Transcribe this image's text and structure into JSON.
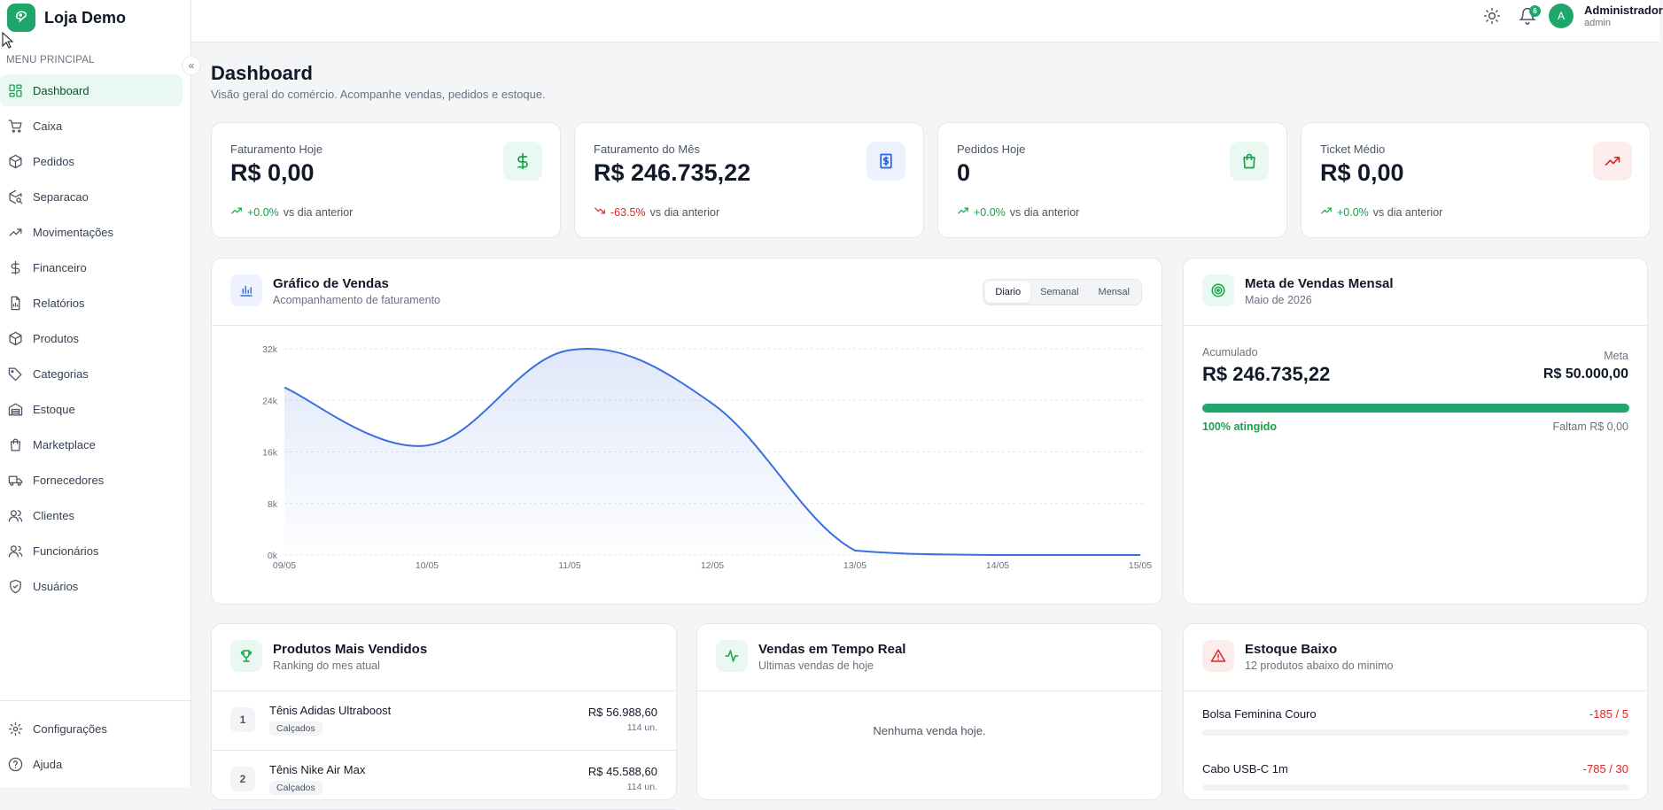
{
  "brand": {
    "name": "Loja Demo"
  },
  "sidebar": {
    "menu_title": "MENU PRINCIPAL",
    "items": [
      {
        "label": "Dashboard",
        "icon": "dashboard-icon"
      },
      {
        "label": "Caixa",
        "icon": "cart-icon"
      },
      {
        "label": "Pedidos",
        "icon": "package-icon"
      },
      {
        "label": "Separacao",
        "icon": "package-search-icon"
      },
      {
        "label": "Movimentações",
        "icon": "trending-icon"
      },
      {
        "label": "Financeiro",
        "icon": "dollar-icon"
      },
      {
        "label": "Relatórios",
        "icon": "report-icon"
      },
      {
        "label": "Produtos",
        "icon": "box-icon"
      },
      {
        "label": "Categorias",
        "icon": "tag-icon"
      },
      {
        "label": "Estoque",
        "icon": "warehouse-icon"
      },
      {
        "label": "Marketplace",
        "icon": "shopping-bag-icon"
      },
      {
        "label": "Fornecedores",
        "icon": "truck-icon"
      },
      {
        "label": "Clientes",
        "icon": "users-icon"
      },
      {
        "label": "Funcionários",
        "icon": "user-group-icon"
      },
      {
        "label": "Usuários",
        "icon": "shield-icon"
      }
    ],
    "bottom": [
      {
        "label": "Configurações",
        "icon": "gear-icon"
      },
      {
        "label": "Ajuda",
        "icon": "help-icon"
      }
    ]
  },
  "topbar": {
    "notifications_count": "6",
    "avatar_initial": "A",
    "user_name": "Administrador",
    "user_role": "admin"
  },
  "page": {
    "title": "Dashboard",
    "subtitle": "Visão geral do comércio. Acompanhe vendas, pedidos e estoque."
  },
  "kpis": [
    {
      "label": "Faturamento Hoje",
      "value": "R$ 0,00",
      "delta": "+0.0%",
      "vs": "vs dia anterior",
      "trend": "up",
      "icon": "dollar-icon",
      "color": "#16a34a"
    },
    {
      "label": "Faturamento do Mês",
      "value": "R$ 246.735,22",
      "delta": "-63.5%",
      "vs": "vs dia anterior",
      "trend": "down",
      "icon": "receipt-icon",
      "color": "#2563eb"
    },
    {
      "label": "Pedidos Hoje",
      "value": "0",
      "delta": "+0.0%",
      "vs": "vs dia anterior",
      "trend": "up",
      "icon": "shopping-bag-icon",
      "color": "#16a34a"
    },
    {
      "label": "Ticket Médio",
      "value": "R$ 0,00",
      "delta": "+0.0%",
      "vs": "vs dia anterior",
      "trend": "up",
      "icon": "trending-up-icon",
      "color": "#dc2626"
    }
  ],
  "sales_chart": {
    "title": "Gráfico de Vendas",
    "subtitle": "Acompanhamento de faturamento",
    "tabs": [
      "Diario",
      "Semanal",
      "Mensal"
    ],
    "active_tab": "Diario"
  },
  "chart_data": {
    "type": "area",
    "x": [
      "09/05",
      "10/05",
      "11/05",
      "12/05",
      "13/05",
      "14/05",
      "15/05"
    ],
    "series": [
      {
        "values": [
          26000,
          17000,
          31800,
          23500,
          700,
          0,
          0
        ]
      }
    ],
    "y_ticks": [
      "0k",
      "8k",
      "16k",
      "24k",
      "32k"
    ],
    "ylim": [
      0,
      32000
    ],
    "grid": true,
    "color": "#3b6fe0"
  },
  "goal": {
    "title": "Meta de Vendas Mensal",
    "subtitle": "Maio de 2026",
    "accum_label": "Acumulado",
    "accum_value": "R$ 246.735,22",
    "meta_label": "Meta",
    "meta_value": "R$ 50.000,00",
    "progress_percent": 100,
    "achieved_text": "100% atingido",
    "remaining_text": "Faltam R$ 0,00"
  },
  "top_products": {
    "title": "Produtos Mais Vendidos",
    "subtitle": "Ranking do mes atual",
    "items": [
      {
        "rank": "1",
        "name": "Tênis Adidas Ultraboost",
        "category": "Calçados",
        "value": "R$ 56.988,60",
        "qty": "114 un."
      },
      {
        "rank": "2",
        "name": "Tênis Nike Air Max",
        "category": "Calçados",
        "value": "R$ 45.588,60",
        "qty": "114 un."
      }
    ]
  },
  "realtime": {
    "title": "Vendas em Tempo Real",
    "subtitle": "Ultimas vendas de hoje",
    "empty": "Nenhuma venda hoje."
  },
  "low_stock": {
    "title": "Estoque Baixo",
    "subtitle": "12 produtos abaixo do minimo",
    "items": [
      {
        "name": "Bolsa Feminina Couro",
        "value": "-185 / 5"
      },
      {
        "name": "Cabo USB-C 1m",
        "value": "-785 / 30"
      }
    ]
  }
}
